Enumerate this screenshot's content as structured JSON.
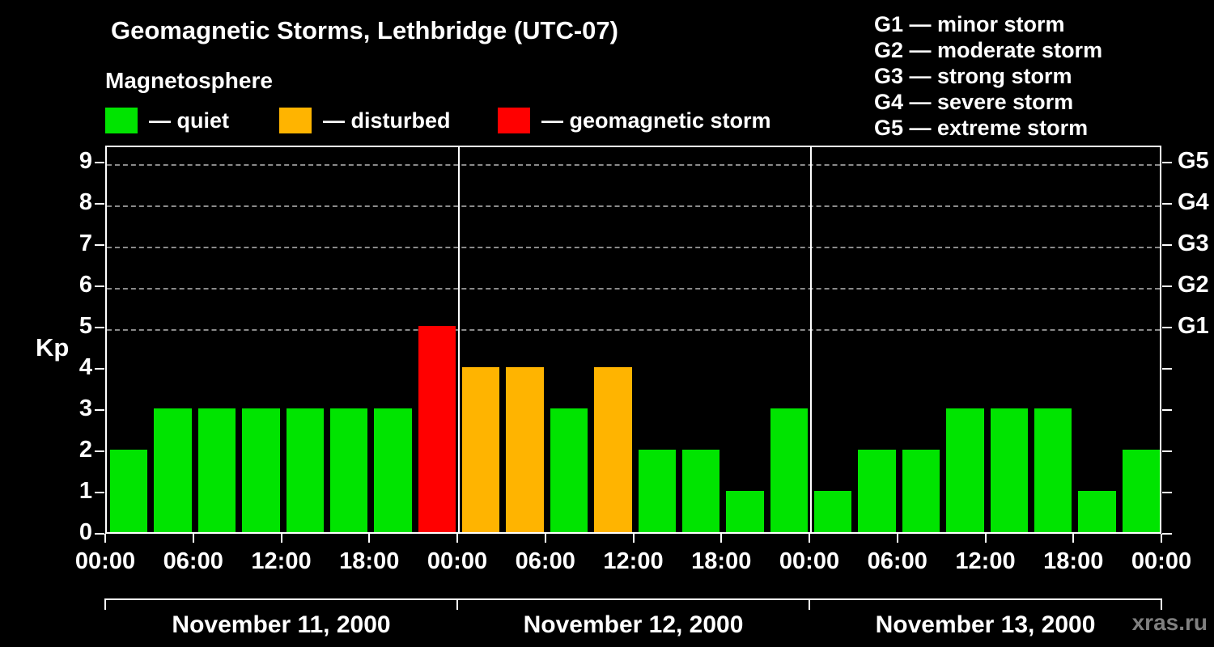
{
  "title": "Geomagnetic Storms, Lethbridge (UTC-07)",
  "subtitle": "Magnetosphere",
  "legend": {
    "quiet": {
      "label": "— quiet",
      "color": "#00e400"
    },
    "disturbed": {
      "label": "— disturbed",
      "color": "#ffb400"
    },
    "storm": {
      "label": "— geomagnetic storm",
      "color": "#ff0000"
    }
  },
  "storm_scale": [
    "G1 — minor storm",
    "G2 — moderate storm",
    "G3 — strong storm",
    "G4 — severe storm",
    "G5 — extreme storm"
  ],
  "watermark": "xras.ru",
  "chart_data": {
    "type": "bar",
    "title": "Geomagnetic Storms, Lethbridge (UTC-07)",
    "ylabel": "Kp",
    "ylim": [
      0,
      9
    ],
    "yticks": [
      0,
      1,
      2,
      3,
      4,
      5,
      6,
      7,
      8,
      9
    ],
    "gridlines_kp": [
      5,
      6,
      7,
      8,
      9
    ],
    "grid": "dashed-horizontal-upper",
    "legend_position": "top",
    "bar_interval_hours": 3,
    "right_scale": [
      {
        "kp": 5,
        "label": "G1"
      },
      {
        "kp": 6,
        "label": "G2"
      },
      {
        "kp": 7,
        "label": "G3"
      },
      {
        "kp": 8,
        "label": "G4"
      },
      {
        "kp": 9,
        "label": "G5"
      }
    ],
    "x_ticks": [
      "00:00",
      "06:00",
      "12:00",
      "18:00",
      "00:00",
      "06:00",
      "12:00",
      "18:00",
      "00:00",
      "06:00",
      "12:00",
      "18:00",
      "00:00"
    ],
    "days": [
      {
        "date": "November 11, 2000",
        "values": [
          2,
          3,
          3,
          3,
          3,
          3,
          3,
          5
        ],
        "categories": [
          "quiet",
          "quiet",
          "quiet",
          "quiet",
          "quiet",
          "quiet",
          "quiet",
          "storm"
        ]
      },
      {
        "date": "November 12, 2000",
        "values": [
          4,
          4,
          3,
          4,
          2,
          2,
          1,
          3
        ],
        "categories": [
          "disturbed",
          "disturbed",
          "quiet",
          "disturbed",
          "quiet",
          "quiet",
          "quiet",
          "quiet"
        ]
      },
      {
        "date": "November 13, 2000",
        "values": [
          1,
          2,
          2,
          3,
          3,
          3,
          1,
          2
        ],
        "categories": [
          "quiet",
          "quiet",
          "quiet",
          "quiet",
          "quiet",
          "quiet",
          "quiet",
          "quiet"
        ]
      }
    ]
  }
}
